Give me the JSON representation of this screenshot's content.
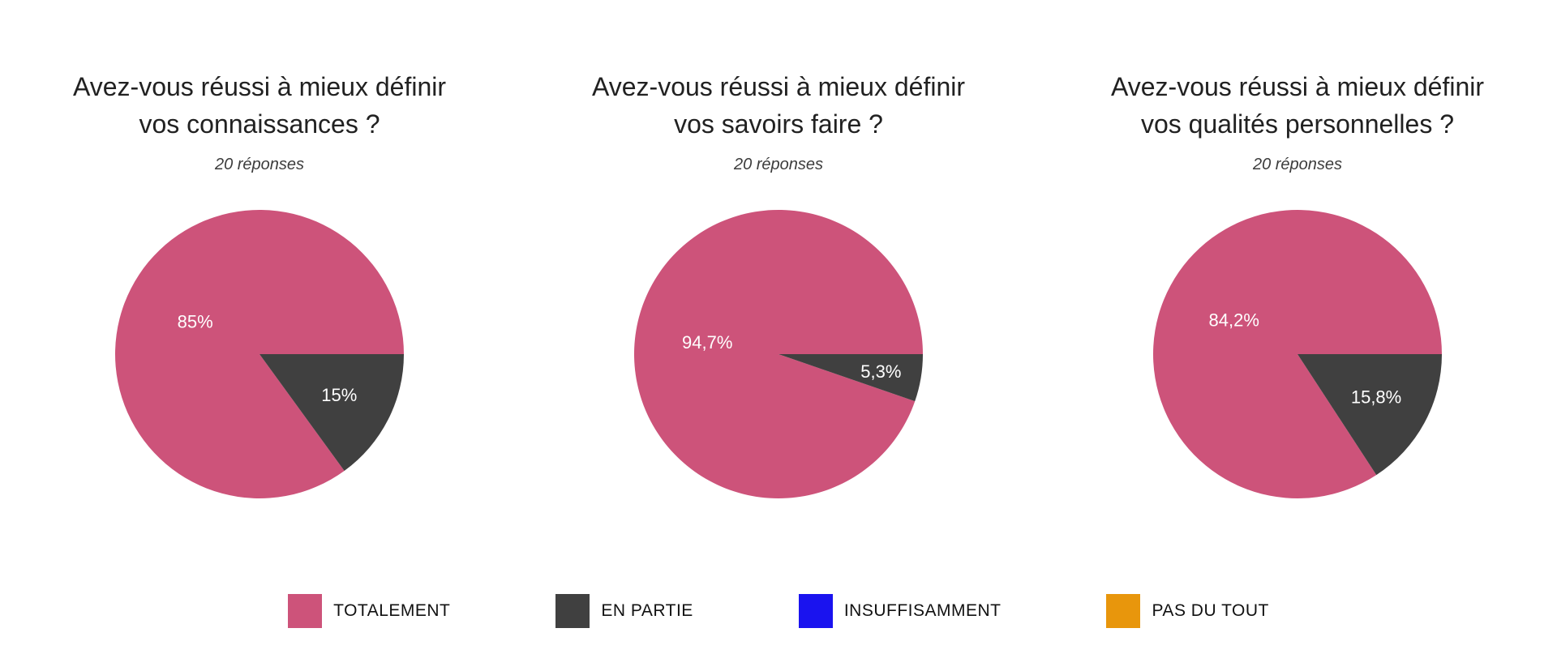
{
  "page": {
    "background": "#ffffff"
  },
  "legend": {
    "items": [
      {
        "label": "TOTALEMENT",
        "color": "#cd537a"
      },
      {
        "label": "EN PARTIE",
        "color": "#404040"
      },
      {
        "label": "INSUFFISAMMENT",
        "color": "#1a13ef"
      },
      {
        "label": "PAS DU TOUT",
        "color": "#e8960c"
      }
    ]
  },
  "chart_data": [
    {
      "type": "pie",
      "title": "Avez-vous réussi à mieux définir vos connaissances ?",
      "subtitle": "20 réponses",
      "responses": 20,
      "slices": [
        {
          "label": "TOTALEMENT",
          "value": 85,
          "display": "85%",
          "color": "#cd537a"
        },
        {
          "label": "EN PARTIE",
          "value": 15,
          "display": "15%",
          "color": "#404040"
        }
      ]
    },
    {
      "type": "pie",
      "title": "Avez-vous réussi à mieux définir vos savoirs faire ?",
      "subtitle": "20 réponses",
      "responses": 20,
      "slices": [
        {
          "label": "TOTALEMENT",
          "value": 94.7,
          "display": "94,7%",
          "color": "#cd537a"
        },
        {
          "label": "EN PARTIE",
          "value": 5.3,
          "display": "5,3%",
          "color": "#404040"
        }
      ]
    },
    {
      "type": "pie",
      "title": "Avez-vous réussi à mieux définir vos qualités personnelles ?",
      "subtitle": "20 réponses",
      "responses": 20,
      "slices": [
        {
          "label": "TOTALEMENT",
          "value": 84.2,
          "display": "84,2%",
          "color": "#cd537a"
        },
        {
          "label": "EN PARTIE",
          "value": 15.8,
          "display": "15,8%",
          "color": "#404040"
        }
      ]
    }
  ]
}
